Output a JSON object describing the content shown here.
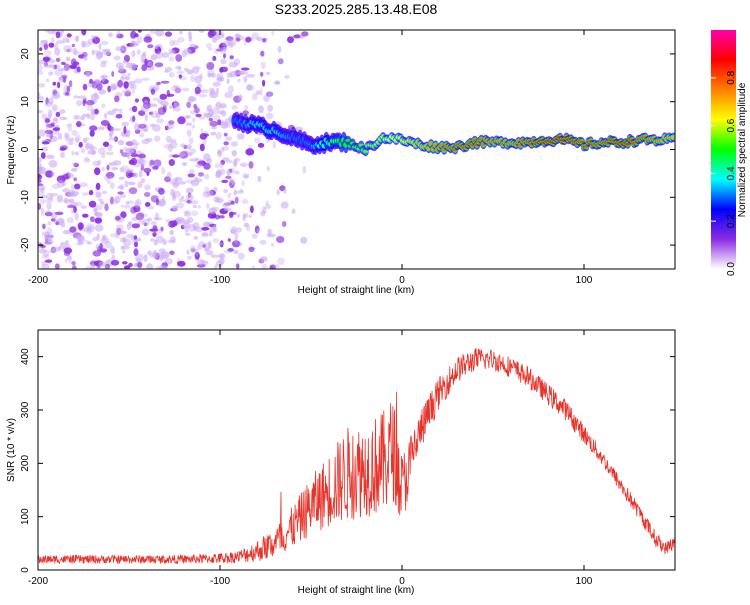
{
  "page": {
    "title": "S233.2025.285.13.48.E08"
  },
  "chart_data": [
    {
      "type": "heatmap",
      "title": "S233.2025.285.13.48.E08",
      "xlabel": "Height of straight line (km)",
      "ylabel": "Frequency (Hz)",
      "xlim": [
        -200,
        150
      ],
      "ylim": [
        -25,
        25
      ],
      "xticks": [
        -200,
        -100,
        0,
        100
      ],
      "yticks": [
        -20,
        -10,
        0,
        10,
        20
      ],
      "xtick_labels": [
        "-200",
        "-100",
        "0",
        "100"
      ],
      "ytick_labels": [
        "-20",
        "-10",
        "0",
        "10",
        "20"
      ],
      "ridge": {
        "x": [
          -90,
          -80,
          -70,
          -60,
          -50,
          -40,
          -30,
          -20,
          -10,
          0,
          10,
          20,
          30,
          40,
          50,
          60,
          70,
          80,
          90,
          100,
          110,
          120,
          130,
          140,
          150
        ],
        "y": [
          6,
          5,
          4,
          2.5,
          1,
          1.5,
          1.5,
          0,
          2.5,
          2,
          1,
          0.5,
          0.5,
          1.5,
          1.5,
          1.5,
          1.5,
          2,
          2,
          1,
          1.5,
          1.5,
          2,
          2,
          2
        ],
        "amplitude": [
          0.3,
          0.35,
          0.35,
          0.3,
          0.3,
          0.45,
          0.5,
          0.55,
          0.6,
          0.65,
          0.7,
          0.75,
          0.8,
          0.8,
          0.75,
          0.75,
          0.8,
          0.85,
          0.85,
          0.8,
          0.8,
          0.85,
          0.8,
          0.75,
          0.7
        ]
      },
      "noise_region_x": [
        -200,
        -70
      ],
      "colorbar": {
        "label": "Normalized spectral amplitude",
        "range": [
          0,
          1
        ],
        "ticks": [
          0,
          0.2,
          0.4,
          0.6,
          0.8
        ],
        "tick_labels": [
          "0.0",
          "0.2",
          "0.4",
          "0.6",
          "0.8"
        ],
        "colors": [
          "#ffffff",
          "#8a2be2",
          "#0000ff",
          "#00ffff",
          "#00ff00",
          "#ffff00",
          "#ff8000",
          "#ff0000",
          "#ff00aa"
        ]
      }
    },
    {
      "type": "line",
      "xlabel": "Height of straight line (km)",
      "ylabel": "SNR (10 * v/v)",
      "xlim": [
        -200,
        150
      ],
      "ylim": [
        0,
        450
      ],
      "xticks": [
        -200,
        -100,
        0,
        100
      ],
      "yticks": [
        0,
        100,
        200,
        300,
        400
      ],
      "xtick_labels": [
        "-200",
        "-100",
        "0",
        "100"
      ],
      "ytick_labels": [
        "0",
        "100",
        "200",
        "300",
        "400"
      ],
      "series": [
        {
          "name": "SNR",
          "color": "#e8332b",
          "x": [
            -200,
            -180,
            -160,
            -140,
            -120,
            -100,
            -90,
            -80,
            -70,
            -60,
            -50,
            -40,
            -30,
            -20,
            -10,
            -5,
            0,
            10,
            20,
            30,
            40,
            50,
            60,
            70,
            80,
            90,
            100,
            110,
            120,
            130,
            140,
            145,
            150
          ],
          "y": [
            20,
            20,
            20,
            20,
            20,
            22,
            25,
            35,
            50,
            80,
            120,
            150,
            180,
            190,
            200,
            230,
            150,
            260,
            330,
            375,
            395,
            395,
            380,
            360,
            330,
            300,
            255,
            210,
            160,
            110,
            55,
            40,
            55
          ],
          "noise": [
            8,
            8,
            8,
            8,
            8,
            10,
            12,
            20,
            30,
            40,
            55,
            70,
            90,
            90,
            100,
            100,
            70,
            40,
            30,
            25,
            22,
            20,
            20,
            20,
            20,
            20,
            18,
            15,
            15,
            15,
            15,
            12,
            15
          ]
        }
      ]
    }
  ]
}
